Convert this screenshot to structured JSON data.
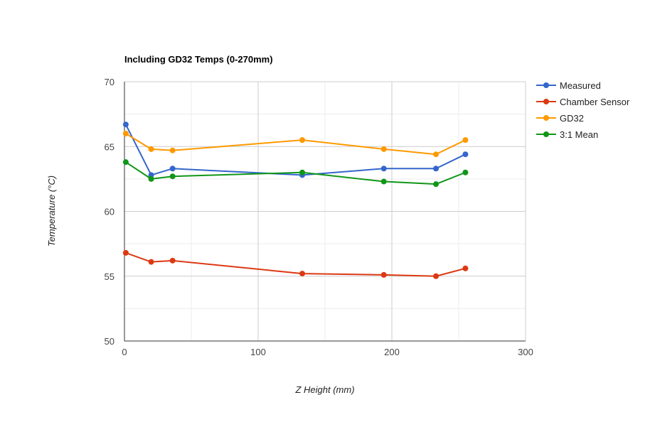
{
  "chart_data": {
    "type": "line",
    "title": "Including GD32 Temps (0-270mm)",
    "xlabel": "Z Height (mm)",
    "ylabel": "Temperature (°C)",
    "xlim": [
      0,
      300
    ],
    "ylim": [
      50,
      70
    ],
    "x_ticks": [
      0,
      100,
      200,
      300
    ],
    "y_ticks": [
      50,
      55,
      60,
      65,
      70
    ],
    "grid": true,
    "legend_position": "right",
    "x": [
      1,
      20,
      36,
      133,
      194,
      233,
      255
    ],
    "series": [
      {
        "name": "Measured",
        "color": "#3366cc",
        "values": [
          66.7,
          62.8,
          63.3,
          62.8,
          63.3,
          63.3,
          64.4
        ]
      },
      {
        "name": "Chamber Sensor",
        "color": "#dc3912",
        "values": [
          56.8,
          56.1,
          56.2,
          55.2,
          55.1,
          55.0,
          55.6
        ]
      },
      {
        "name": "GD32",
        "color": "#ff9900",
        "values": [
          66.0,
          64.8,
          64.7,
          65.5,
          64.8,
          64.4,
          65.5
        ]
      },
      {
        "name": "3:1 Mean",
        "color": "#109618",
        "values": [
          63.8,
          62.5,
          62.7,
          63.0,
          62.3,
          62.1,
          63.0
        ]
      }
    ]
  }
}
